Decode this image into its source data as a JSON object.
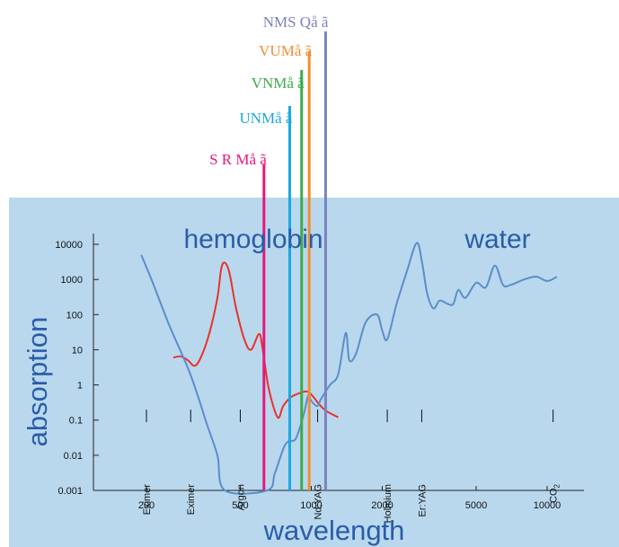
{
  "chart_data": {
    "type": "line",
    "title": "",
    "xlabel": "wavelength",
    "ylabel": "absorption",
    "x_scale": "log",
    "y_scale": "log",
    "xlim": [
      150,
      12000
    ],
    "ylim": [
      0.001,
      20000
    ],
    "x_ticks": [
      200,
      500,
      1000,
      2000,
      5000,
      10000
    ],
    "x_tick_labels": [
      "200",
      "500",
      "1000",
      "2000",
      "5000",
      "10000"
    ],
    "y_ticks": [
      0.001,
      0.01,
      0.1,
      1,
      10,
      100,
      1000,
      10000
    ],
    "y_tick_labels": [
      "0.001",
      "0.01",
      "0.1",
      "1",
      "10",
      "100",
      "1000",
      "10000"
    ],
    "series": [
      {
        "name": "hemoglobin",
        "color": "#e8322a",
        "points": [
          [
            260,
            6
          ],
          [
            280,
            6.5
          ],
          [
            300,
            5
          ],
          [
            320,
            3.5
          ],
          [
            340,
            6
          ],
          [
            370,
            30
          ],
          [
            400,
            300
          ],
          [
            415,
            2000
          ],
          [
            430,
            3000
          ],
          [
            450,
            1500
          ],
          [
            480,
            150
          ],
          [
            520,
            20
          ],
          [
            555,
            10
          ],
          [
            600,
            28
          ],
          [
            620,
            12
          ],
          [
            660,
            0.8
          ],
          [
            720,
            0.12
          ],
          [
            760,
            0.25
          ],
          [
            820,
            0.45
          ],
          [
            900,
            0.6
          ],
          [
            960,
            0.65
          ],
          [
            1010,
            0.5
          ],
          [
            1080,
            0.28
          ],
          [
            1160,
            0.18
          ],
          [
            1300,
            0.12
          ]
        ]
      },
      {
        "name": "water",
        "color": "#5b8dc9",
        "points": [
          [
            190,
            5000
          ],
          [
            210,
            1000
          ],
          [
            250,
            50
          ],
          [
            300,
            3
          ],
          [
            330,
            0.5
          ],
          [
            360,
            0.08
          ],
          [
            400,
            0.01
          ],
          [
            430,
            0.001
          ],
          [
            650,
            0.001
          ],
          [
            700,
            0.003
          ],
          [
            760,
            0.015
          ],
          [
            800,
            0.025
          ],
          [
            860,
            0.03
          ],
          [
            930,
            0.15
          ],
          [
            970,
            0.5
          ],
          [
            1000,
            0.35
          ],
          [
            1060,
            0.25
          ],
          [
            1100,
            0.4
          ],
          [
            1200,
            1
          ],
          [
            1300,
            2
          ],
          [
            1400,
            30
          ],
          [
            1450,
            5
          ],
          [
            1550,
            8
          ],
          [
            1700,
            60
          ],
          [
            1900,
            100
          ],
          [
            2000,
            35
          ],
          [
            2100,
            20
          ],
          [
            2300,
            200
          ],
          [
            2550,
            1800
          ],
          [
            2800,
            11000
          ],
          [
            2950,
            3000
          ],
          [
            3100,
            400
          ],
          [
            3300,
            150
          ],
          [
            3500,
            250
          ],
          [
            3800,
            200
          ],
          [
            4000,
            200
          ],
          [
            4200,
            500
          ],
          [
            4500,
            300
          ],
          [
            5000,
            800
          ],
          [
            5500,
            600
          ],
          [
            6000,
            2500
          ],
          [
            6500,
            700
          ],
          [
            7000,
            700
          ],
          [
            8000,
            1000
          ],
          [
            9000,
            1200
          ],
          [
            10000,
            900
          ],
          [
            11000,
            1200
          ]
        ]
      }
    ],
    "annotations": [
      {
        "text": "hemoglobin"
      },
      {
        "text": "water"
      }
    ],
    "laser_bands": [
      {
        "text": "Eximer",
        "x": 200
      },
      {
        "text": "Eximer",
        "x": 308
      },
      {
        "text": "Argon",
        "x": 500
      },
      {
        "text": "Nd:YAG",
        "x": 1064
      },
      {
        "text": "Holmium",
        "x": 2100
      },
      {
        "text": "Er:YAG",
        "x": 2940
      },
      {
        "text": "CO",
        "subscript": "2",
        "x": 10600
      }
    ],
    "markers": [
      {
        "text": "S R Må ã",
        "x": 630,
        "color": "#e6177e"
      },
      {
        "text": "UNMå ã",
        "x": 810,
        "color": "#1ba7e1"
      },
      {
        "text": "VNMå ã",
        "x": 910,
        "color": "#3cab4a"
      },
      {
        "text": "VUMå ã",
        "x": 980,
        "color": "#f28c2f"
      },
      {
        "text": "NMS Qå ã",
        "x": 1150,
        "color": "#7a82bf"
      }
    ],
    "background_color": "#b9d8ee",
    "grid": false,
    "legend": "none"
  }
}
